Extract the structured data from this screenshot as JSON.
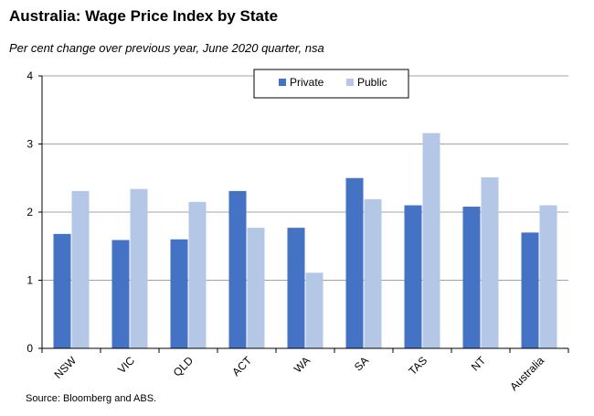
{
  "title": "Australia: Wage Price Index by State",
  "subtitle": "Per cent change over previous year, June 2020  quarter, nsa",
  "source": "Source: Bloomberg and ABS.",
  "colors": {
    "private": "#4472c4",
    "public": "#b4c7e7",
    "grid": "#a6a6a6",
    "axis": "#000000"
  },
  "chart_data": {
    "type": "bar",
    "categories": [
      "NSW",
      "VIC",
      "QLD",
      "ACT",
      "WA",
      "SA",
      "TAS",
      "NT",
      "Australia"
    ],
    "series": [
      {
        "name": "Private",
        "values": [
          1.68,
          1.59,
          1.6,
          2.31,
          1.77,
          2.5,
          2.1,
          2.08,
          1.7
        ]
      },
      {
        "name": "Public",
        "values": [
          2.31,
          2.34,
          2.15,
          1.77,
          1.11,
          2.19,
          3.16,
          2.51,
          2.1
        ]
      }
    ],
    "yticks": [
      "0",
      "1",
      "2",
      "3",
      "4"
    ],
    "ylim": [
      0,
      4
    ],
    "grid": true,
    "legend_position": "top-center"
  }
}
